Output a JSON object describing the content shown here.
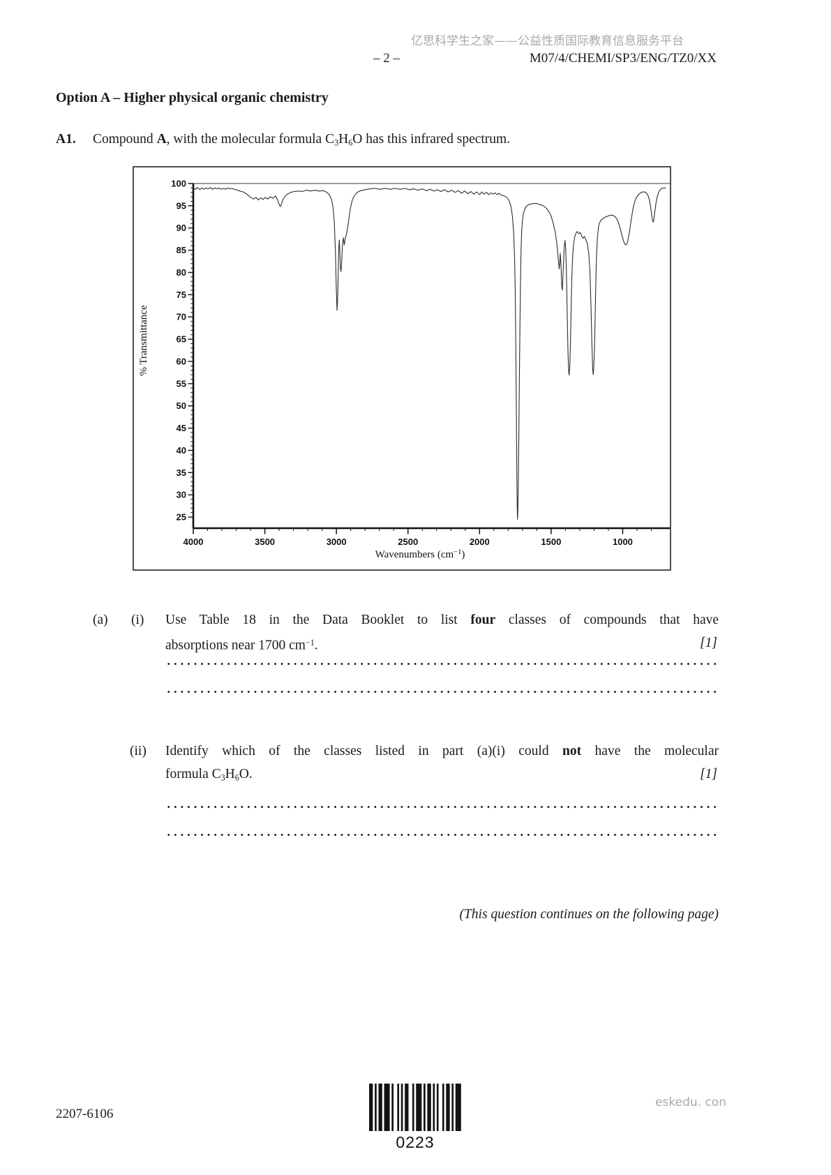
{
  "header": {
    "watermark_cn": "亿思科学生之家——公益性质国际教育信息服务平台",
    "page_number": "– 2 –",
    "exam_code": "M07/4/CHEMI/SP3/ENG/TZ0/XX"
  },
  "section_title": "Option A – Higher physical organic chemistry",
  "question": {
    "number": "A1.",
    "intro_segments": [
      {
        "t": "Compound "
      },
      {
        "t": "A",
        "s": "b"
      },
      {
        "t": ", with the molecular formula C"
      },
      {
        "t": "3",
        "s": "sub"
      },
      {
        "t": "H"
      },
      {
        "t": "6",
        "s": "sub"
      },
      {
        "t": "O has this infrared spectrum."
      }
    ],
    "parts": [
      {
        "outer_label": "(a)",
        "inner_label": "(i)",
        "marks": "[1]",
        "line1": [
          {
            "t": "Use Table 18 in the Data Booklet to list "
          },
          {
            "t": "four",
            "s": "b"
          },
          {
            "t": " classes of compounds that have"
          }
        ],
        "line2": [
          {
            "t": "absorptions near 1700 cm"
          },
          {
            "t": "−1",
            "s": "sup"
          },
          {
            "t": "."
          }
        ]
      },
      {
        "outer_label": "",
        "inner_label": "(ii)",
        "marks": "[1]",
        "line1": [
          {
            "t": "Identify which of the classes listed in part (a)(i) could "
          },
          {
            "t": "not",
            "s": "b"
          },
          {
            "t": " have the molecular"
          }
        ],
        "line2": [
          {
            "t": "formula C"
          },
          {
            "t": "3",
            "s": "sub"
          },
          {
            "t": "H"
          },
          {
            "t": "6",
            "s": "sub"
          },
          {
            "t": "O."
          }
        ]
      }
    ],
    "continuation_note": "(This question continues on the following page)"
  },
  "footer": {
    "doc_code": "2207-6106",
    "barcode_text": "0223",
    "watermark_site": "eskedu. con"
  },
  "chart_data": {
    "type": "line",
    "xlabel": "Wavenumbers (cm−1)",
    "xlabel_parts": {
      "pre": "Wavenumbers (cm",
      "sup": "−1",
      "post": ")"
    },
    "ylabel": "% Transmittance",
    "x_axis": {
      "min_shown": 700,
      "max_shown": 4000,
      "direction": "decreasing left to right",
      "major_ticks": [
        4000,
        3500,
        3000,
        2500,
        2000,
        1500,
        1000
      ],
      "minor_tick_step": 100
    },
    "y_axis": {
      "min_label": 25,
      "max_label": 100,
      "major_ticks": [
        100,
        95,
        90,
        85,
        80,
        75,
        70,
        65,
        60,
        55,
        50,
        45,
        40,
        35,
        30,
        25
      ],
      "minor_tick_step": 1
    },
    "major_absorptions": [
      {
        "wavenumber": 3392,
        "transmittance": 94.8
      },
      {
        "wavenumber": 2996,
        "transmittance": 71.5
      },
      {
        "wavenumber": 2968,
        "transmittance": 80.2
      },
      {
        "wavenumber": 2940,
        "transmittance": 87.5
      },
      {
        "wavenumber": 1735,
        "transmittance": 24.5
      },
      {
        "wavenumber": 1444,
        "transmittance": 80.8
      },
      {
        "wavenumber": 1422,
        "transmittance": 76.0
      },
      {
        "wavenumber": 1374,
        "transmittance": 56.9
      },
      {
        "wavenumber": 1206,
        "transmittance": 57.0
      },
      {
        "wavenumber": 977,
        "transmittance": 86.2
      },
      {
        "wavenumber": 787,
        "transmittance": 91.3
      }
    ],
    "series": [
      {
        "name": "% transmittance of compound A",
        "points": [
          [
            4000,
            99.0
          ],
          [
            3985,
            98.7
          ],
          [
            3970,
            99.1
          ],
          [
            3955,
            98.6
          ],
          [
            3940,
            99.0
          ],
          [
            3925,
            98.7
          ],
          [
            3910,
            99.0
          ],
          [
            3895,
            98.8
          ],
          [
            3880,
            99.1
          ],
          [
            3865,
            98.7
          ],
          [
            3850,
            99.0
          ],
          [
            3835,
            98.8
          ],
          [
            3820,
            99.0
          ],
          [
            3805,
            98.7
          ],
          [
            3790,
            98.9
          ],
          [
            3775,
            98.7
          ],
          [
            3760,
            99.0
          ],
          [
            3745,
            98.8
          ],
          [
            3730,
            98.9
          ],
          [
            3715,
            98.7
          ],
          [
            3700,
            98.6
          ],
          [
            3675,
            98.3
          ],
          [
            3650,
            98.1
          ],
          [
            3625,
            97.6
          ],
          [
            3600,
            96.9
          ],
          [
            3580,
            96.5
          ],
          [
            3562,
            96.9
          ],
          [
            3545,
            96.3
          ],
          [
            3528,
            96.8
          ],
          [
            3512,
            96.4
          ],
          [
            3496,
            96.9
          ],
          [
            3480,
            96.5
          ],
          [
            3462,
            97.0
          ],
          [
            3444,
            96.7
          ],
          [
            3426,
            97.2
          ],
          [
            3410,
            96.3
          ],
          [
            3400,
            95.3
          ],
          [
            3392,
            94.8
          ],
          [
            3384,
            95.4
          ],
          [
            3374,
            96.4
          ],
          [
            3360,
            97.1
          ],
          [
            3342,
            97.6
          ],
          [
            3320,
            98.0
          ],
          [
            3295,
            98.2
          ],
          [
            3268,
            98.3
          ],
          [
            3240,
            98.2
          ],
          [
            3210,
            98.5
          ],
          [
            3180,
            98.3
          ],
          [
            3150,
            98.5
          ],
          [
            3120,
            98.3
          ],
          [
            3090,
            98.4
          ],
          [
            3065,
            98.0
          ],
          [
            3048,
            97.4
          ],
          [
            3035,
            96.5
          ],
          [
            3024,
            94.8
          ],
          [
            3015,
            91.5
          ],
          [
            3007,
            85
          ],
          [
            3001,
            77
          ],
          [
            2996,
            71.5
          ],
          [
            2992,
            73.5
          ],
          [
            2988,
            79
          ],
          [
            2984,
            85
          ],
          [
            2980,
            87.3
          ],
          [
            2976,
            84.5
          ],
          [
            2972,
            81
          ],
          [
            2968,
            80.2
          ],
          [
            2963,
            82.5
          ],
          [
            2957,
            86.6
          ],
          [
            2951,
            87.8
          ],
          [
            2945,
            86.2
          ],
          [
            2939,
            87.6
          ],
          [
            2932,
            88.3
          ],
          [
            2924,
            89.6
          ],
          [
            2914,
            91.8
          ],
          [
            2903,
            94.3
          ],
          [
            2890,
            96.2
          ],
          [
            2874,
            97.3
          ],
          [
            2855,
            98.0
          ],
          [
            2830,
            98.4
          ],
          [
            2800,
            98.6
          ],
          [
            2765,
            98.8
          ],
          [
            2730,
            98.9
          ],
          [
            2695,
            98.7
          ],
          [
            2660,
            98.9
          ],
          [
            2625,
            98.7
          ],
          [
            2590,
            98.9
          ],
          [
            2555,
            98.7
          ],
          [
            2520,
            98.9
          ],
          [
            2490,
            98.6
          ],
          [
            2460,
            98.8
          ],
          [
            2430,
            98.5
          ],
          [
            2400,
            98.8
          ],
          [
            2370,
            98.4
          ],
          [
            2345,
            98.7
          ],
          [
            2320,
            98.3
          ],
          [
            2295,
            98.6
          ],
          [
            2270,
            98.2
          ],
          [
            2245,
            98.6
          ],
          [
            2220,
            98.1
          ],
          [
            2195,
            98.5
          ],
          [
            2170,
            98.0
          ],
          [
            2148,
            98.4
          ],
          [
            2126,
            97.8
          ],
          [
            2104,
            98.3
          ],
          [
            2082,
            97.7
          ],
          [
            2060,
            98.2
          ],
          [
            2040,
            97.6
          ],
          [
            2020,
            98.1
          ],
          [
            2000,
            97.5
          ],
          [
            1984,
            98.1
          ],
          [
            1968,
            97.6
          ],
          [
            1952,
            98.0
          ],
          [
            1936,
            97.5
          ],
          [
            1920,
            97.9
          ],
          [
            1906,
            97.6
          ],
          [
            1892,
            97.9
          ],
          [
            1878,
            97.5
          ],
          [
            1864,
            97.8
          ],
          [
            1850,
            97.4
          ],
          [
            1835,
            97.3
          ],
          [
            1820,
            97.1
          ],
          [
            1805,
            96.7
          ],
          [
            1792,
            96.0
          ],
          [
            1780,
            94.8
          ],
          [
            1770,
            92.5
          ],
          [
            1762,
            89
          ],
          [
            1756,
            84
          ],
          [
            1751,
            76
          ],
          [
            1747,
            65
          ],
          [
            1743,
            50
          ],
          [
            1740,
            37
          ],
          [
            1737,
            27
          ],
          [
            1735,
            24.5
          ],
          [
            1733,
            26
          ],
          [
            1730,
            31
          ],
          [
            1726,
            42
          ],
          [
            1722,
            55
          ],
          [
            1718,
            68
          ],
          [
            1714,
            78
          ],
          [
            1710,
            85
          ],
          [
            1706,
            89
          ],
          [
            1701,
            91.5
          ],
          [
            1695,
            93
          ],
          [
            1687,
            94
          ],
          [
            1675,
            94.8
          ],
          [
            1660,
            95.2
          ],
          [
            1642,
            95.4
          ],
          [
            1622,
            95.5
          ],
          [
            1602,
            95.5
          ],
          [
            1582,
            95.3
          ],
          [
            1562,
            95.1
          ],
          [
            1542,
            94.7
          ],
          [
            1522,
            94.0
          ],
          [
            1504,
            93.0
          ],
          [
            1488,
            91.4
          ],
          [
            1473,
            89.3
          ],
          [
            1460,
            86.6
          ],
          [
            1450,
            83.2
          ],
          [
            1444,
            80.8
          ],
          [
            1440,
            82.0
          ],
          [
            1436,
            84.3
          ],
          [
            1431,
            81.5
          ],
          [
            1426,
            77.0
          ],
          [
            1422,
            76.0
          ],
          [
            1418,
            78.5
          ],
          [
            1413,
            82.5
          ],
          [
            1408,
            86.0
          ],
          [
            1403,
            87.2
          ],
          [
            1398,
            85.3
          ],
          [
            1393,
            80.0
          ],
          [
            1388,
            71.0
          ],
          [
            1383,
            63.0
          ],
          [
            1378,
            58.0
          ],
          [
            1374,
            56.9
          ],
          [
            1370,
            58.5
          ],
          [
            1366,
            63.0
          ],
          [
            1361,
            70.5
          ],
          [
            1356,
            78.0
          ],
          [
            1350,
            83.5
          ],
          [
            1343,
            86.4
          ],
          [
            1335,
            88.0
          ],
          [
            1326,
            88.9
          ],
          [
            1317,
            89.2
          ],
          [
            1307,
            88.7
          ],
          [
            1297,
            89.0
          ],
          [
            1287,
            88.2
          ],
          [
            1277,
            87.7
          ],
          [
            1267,
            88.1
          ],
          [
            1257,
            87.3
          ],
          [
            1247,
            86.5
          ],
          [
            1237,
            84.3
          ],
          [
            1229,
            80.3
          ],
          [
            1221,
            72.0
          ],
          [
            1215,
            64.0
          ],
          [
            1210,
            58.5
          ],
          [
            1206,
            57.0
          ],
          [
            1202,
            58.5
          ],
          [
            1197,
            63.0
          ],
          [
            1192,
            71.0
          ],
          [
            1187,
            79.0
          ],
          [
            1182,
            84.5
          ],
          [
            1176,
            88.0
          ],
          [
            1169,
            90.2
          ],
          [
            1161,
            91.2
          ],
          [
            1151,
            91.8
          ],
          [
            1139,
            92.1
          ],
          [
            1124,
            92.4
          ],
          [
            1109,
            92.6
          ],
          [
            1094,
            92.8
          ],
          [
            1079,
            92.9
          ],
          [
            1064,
            92.8
          ],
          [
            1049,
            92.4
          ],
          [
            1034,
            91.6
          ],
          [
            1019,
            90.1
          ],
          [
            1004,
            88.2
          ],
          [
            991,
            86.8
          ],
          [
            981,
            86.2
          ],
          [
            973,
            86.3
          ],
          [
            965,
            87.0
          ],
          [
            955,
            88.6
          ],
          [
            945,
            90.8
          ],
          [
            935,
            93.0
          ],
          [
            925,
            94.8
          ],
          [
            915,
            96.0
          ],
          [
            905,
            96.8
          ],
          [
            895,
            97.3
          ],
          [
            883,
            97.7
          ],
          [
            871,
            98.0
          ],
          [
            859,
            98.1
          ],
          [
            847,
            98.1
          ],
          [
            835,
            97.9
          ],
          [
            823,
            97.3
          ],
          [
            813,
            96.3
          ],
          [
            805,
            94.7
          ],
          [
            798,
            93.0
          ],
          [
            792,
            91.8
          ],
          [
            787,
            91.3
          ],
          [
            782,
            92.0
          ],
          [
            776,
            93.5
          ],
          [
            768,
            95.4
          ],
          [
            759,
            97.0
          ],
          [
            749,
            98.0
          ],
          [
            738,
            98.6
          ],
          [
            726,
            98.9
          ],
          [
            713,
            99.0
          ],
          [
            700,
            99.0
          ]
        ]
      }
    ]
  }
}
